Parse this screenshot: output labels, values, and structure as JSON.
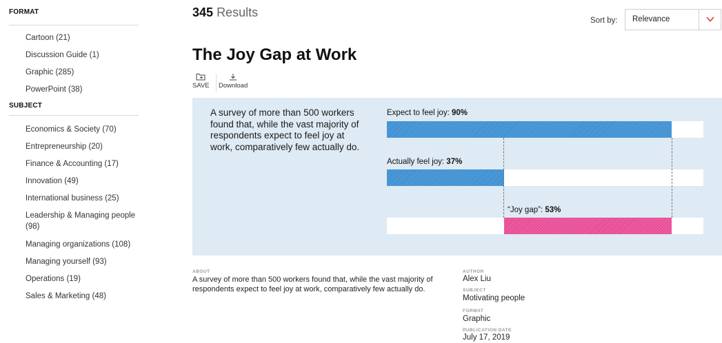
{
  "sidebar": {
    "format_heading": "FORMAT",
    "format_items": [
      "Cartoon (21)",
      "Discussion Guide (1)",
      "Graphic (285)",
      "PowerPoint (38)"
    ],
    "subject_heading": "SUBJECT",
    "subject_items": [
      "Economics & Society (70)",
      "Entrepreneurship (20)",
      "Finance & Accounting (17)",
      "Innovation (49)",
      "International business (25)",
      "Leadership & Managing people (98)",
      "Managing organizations (108)",
      "Managing yourself (93)",
      "Operations (19)",
      "Sales & Marketing (48)"
    ]
  },
  "header": {
    "results_count": "345",
    "results_word": "Results",
    "sort_label": "Sort by:",
    "sort_value": "Relevance"
  },
  "article": {
    "title": "The Joy Gap at Work",
    "save_label": "SAVE",
    "download_label": "Download"
  },
  "graphic": {
    "blurb": "A survey of more than 500 workers found that, while the vast majority of respondents expect to feel joy at work, comparatively few actually do.",
    "bars": [
      {
        "label": "Expect to feel joy: ",
        "value_text": "90%",
        "start": 0,
        "value": 90,
        "color": "blue"
      },
      {
        "label": "Actually feel joy: ",
        "value_text": "37%",
        "start": 0,
        "value": 37,
        "color": "blue"
      },
      {
        "label": "“Joy gap”: ",
        "value_text": "53%",
        "start": 37,
        "value": 53,
        "color": "pink"
      }
    ],
    "colors": {
      "blue": "#3f8fd0",
      "pink": "#e64c95",
      "panel": "#deeaf4"
    }
  },
  "meta": {
    "about_label": "ABOUT",
    "about_text": "A survey of more than 500 workers found that, while the vast majority of respondents expect to feel joy at work, comparatively few actually do.",
    "author_label": "AUTHOR",
    "author": "Alex Liu",
    "subject_label": "SUBJECT",
    "subject": "Motivating people",
    "format_label": "FORMAT",
    "format": "Graphic",
    "date_label": "PUBLICATION DATE",
    "date": "July 17, 2019"
  }
}
